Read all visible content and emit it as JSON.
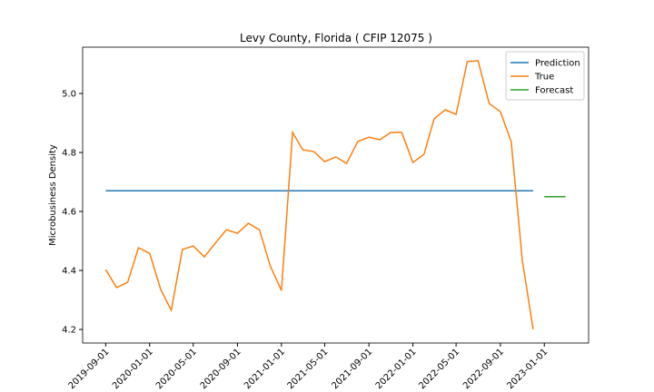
{
  "chart_data": {
    "type": "line",
    "title": "Levy County, Florida ( CFIP 12075 )",
    "y_label": "Microbusiness Density",
    "x": [
      "2019-09-01",
      "2019-10-01",
      "2019-11-01",
      "2019-12-01",
      "2020-01-01",
      "2020-02-01",
      "2020-03-01",
      "2020-04-01",
      "2020-05-01",
      "2020-06-01",
      "2020-07-01",
      "2020-08-01",
      "2020-09-01",
      "2020-10-01",
      "2020-11-01",
      "2020-12-01",
      "2021-01-01",
      "2021-02-01",
      "2021-03-01",
      "2021-04-01",
      "2021-05-01",
      "2021-06-01",
      "2021-07-01",
      "2021-08-01",
      "2021-09-01",
      "2021-10-01",
      "2021-11-01",
      "2021-12-01",
      "2022-01-01",
      "2022-02-01",
      "2022-03-01",
      "2022-04-01",
      "2022-05-01",
      "2022-06-01",
      "2022-07-01",
      "2022-08-01",
      "2022-09-01",
      "2022-10-01",
      "2022-11-01",
      "2022-12-01"
    ],
    "series": [
      {
        "name": "Prediction",
        "color": "#1f77b4",
        "values": [
          4.67,
          4.67,
          4.67,
          4.67,
          4.67,
          4.67,
          4.67,
          4.67,
          4.67,
          4.67,
          4.67,
          4.67,
          4.67,
          4.67,
          4.67,
          4.67,
          4.67,
          4.67,
          4.67,
          4.67,
          4.67,
          4.67,
          4.67,
          4.67,
          4.67,
          4.67,
          4.67,
          4.67,
          4.67,
          4.67,
          4.67,
          4.67,
          4.67,
          4.67,
          4.67,
          4.67,
          4.67,
          4.67,
          4.67,
          4.67
        ]
      },
      {
        "name": "True",
        "color": "#ff7f0e",
        "values": [
          4.403,
          4.342,
          4.36,
          4.477,
          4.458,
          4.335,
          4.265,
          4.471,
          4.483,
          4.446,
          4.492,
          4.538,
          4.526,
          4.56,
          4.538,
          4.415,
          4.332,
          4.868,
          4.809,
          4.803,
          4.769,
          4.785,
          4.763,
          4.837,
          4.852,
          4.843,
          4.868,
          4.868,
          4.766,
          4.794,
          4.914,
          4.945,
          4.929,
          5.108,
          5.111,
          4.966,
          4.938,
          4.837,
          4.434,
          4.2
        ]
      },
      {
        "name": "Forecast",
        "color": "#2ca02c",
        "x": [
          "2023-01-01",
          "2023-02-01",
          "2023-03-01"
        ],
        "values": [
          4.65,
          4.65,
          4.65
        ]
      }
    ],
    "xlim": [
      "2019-06-29",
      "2023-05-04"
    ],
    "xticks": [
      "2019-09-01",
      "2020-01-01",
      "2020-05-01",
      "2020-09-01",
      "2021-01-01",
      "2021-05-01",
      "2021-09-01",
      "2022-01-01",
      "2022-05-01",
      "2022-09-01",
      "2023-01-01"
    ],
    "ylim": [
      4.154,
      5.157
    ],
    "yticks": [
      4.2,
      4.4,
      4.6,
      4.8,
      {
        "value": 5,
        "label": "5.0"
      }
    ],
    "legend": "upper right"
  }
}
